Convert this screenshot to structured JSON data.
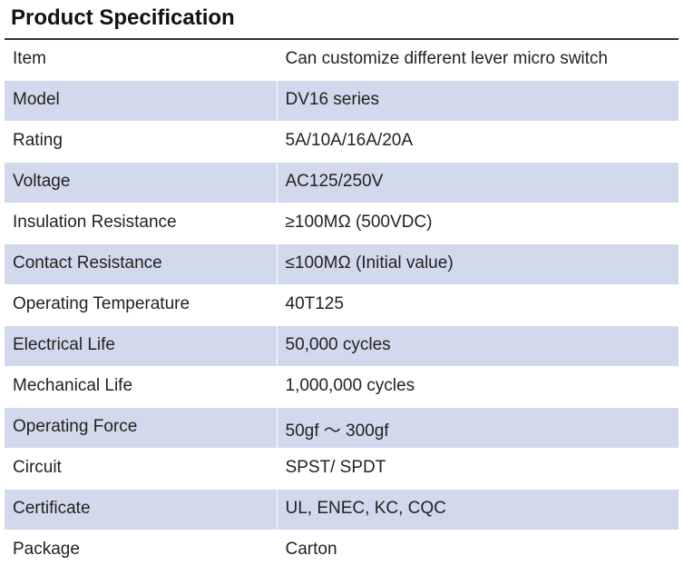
{
  "title": "Product Specification",
  "table": {
    "rows": [
      [
        "Item",
        "Can customize different lever micro switch"
      ],
      [
        "Model",
        "DV16 series"
      ],
      [
        "Rating",
        "5A/10A/16A/20A"
      ],
      [
        "Voltage",
        "AC125/250V"
      ],
      [
        "Insulation Resistance",
        "≥100MΩ (500VDC)"
      ],
      [
        "Contact Resistance",
        "≤100MΩ (Initial value)"
      ],
      [
        "Operating Temperature",
        "40T125"
      ],
      [
        "Electrical Life",
        "50,000 cycles"
      ],
      [
        "Mechanical Life",
        "1,000,000 cycles"
      ],
      [
        "Operating Force",
        "50gf ～ 300gf"
      ],
      [
        "Circuit",
        "SPST/ SPDT"
      ],
      [
        "Certificate",
        "UL, ENEC, KC, CQC"
      ],
      [
        "Package",
        "Carton"
      ]
    ]
  }
}
